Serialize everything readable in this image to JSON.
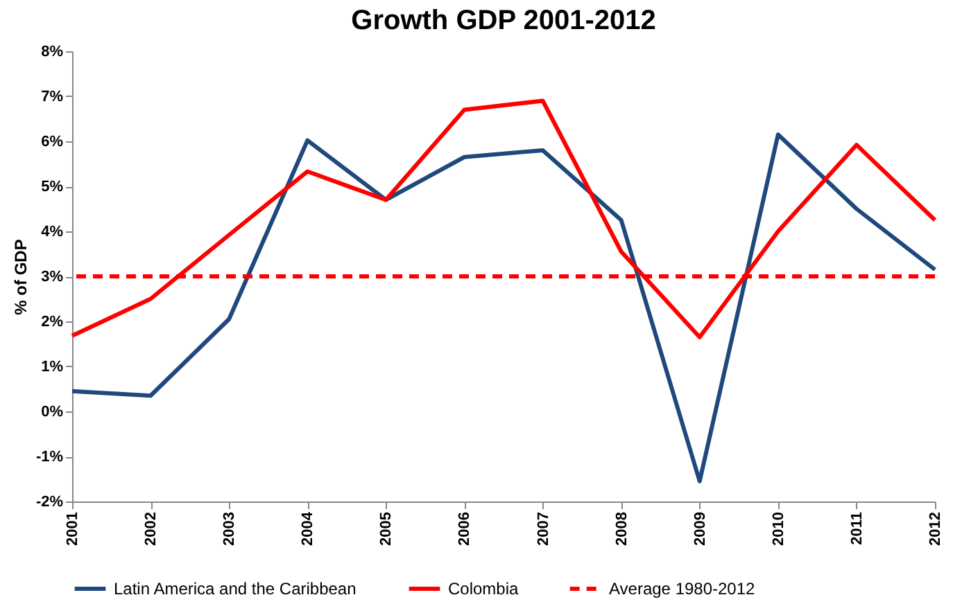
{
  "chart_data": {
    "type": "line",
    "title": "Growth GDP 2001-2012",
    "ylabel": "% of GDP",
    "categories": [
      "2001",
      "2002",
      "2003",
      "2004",
      "2005",
      "2006",
      "2007",
      "2008",
      "2009",
      "2010",
      "2011",
      "2012"
    ],
    "series": [
      {
        "name": "Latin America and the Caribbean",
        "color": "#1f497d",
        "values": [
          0.45,
          0.35,
          2.05,
          6.02,
          4.7,
          5.65,
          5.8,
          4.25,
          -1.55,
          6.15,
          4.5,
          3.15
        ]
      },
      {
        "name": "Colombia",
        "color": "#ff0000",
        "values": [
          1.68,
          2.5,
          3.92,
          5.33,
          4.7,
          6.7,
          6.9,
          3.55,
          1.65,
          4.0,
          5.92,
          4.25
        ]
      }
    ],
    "ref_lines": [
      {
        "axis": "y",
        "value": 3,
        "label": "Average 1980-2012",
        "color": "#ff0000",
        "line_style": "dashed"
      }
    ],
    "ylim": [
      -2,
      8
    ],
    "yticks": [
      {
        "value": -2,
        "label": "-2%"
      },
      {
        "value": -1,
        "label": "-1%"
      },
      {
        "value": 0,
        "label": "0%"
      },
      {
        "value": 1,
        "label": "1%"
      },
      {
        "value": 2,
        "label": "2%"
      },
      {
        "value": 3,
        "label": "3%"
      },
      {
        "value": 4,
        "label": "4%"
      },
      {
        "value": 5,
        "label": "5%"
      },
      {
        "value": 6,
        "label": "6%"
      },
      {
        "value": 7,
        "label": "7%"
      },
      {
        "value": 8,
        "label": "8%"
      }
    ],
    "grid": false,
    "legend": "bottom"
  }
}
